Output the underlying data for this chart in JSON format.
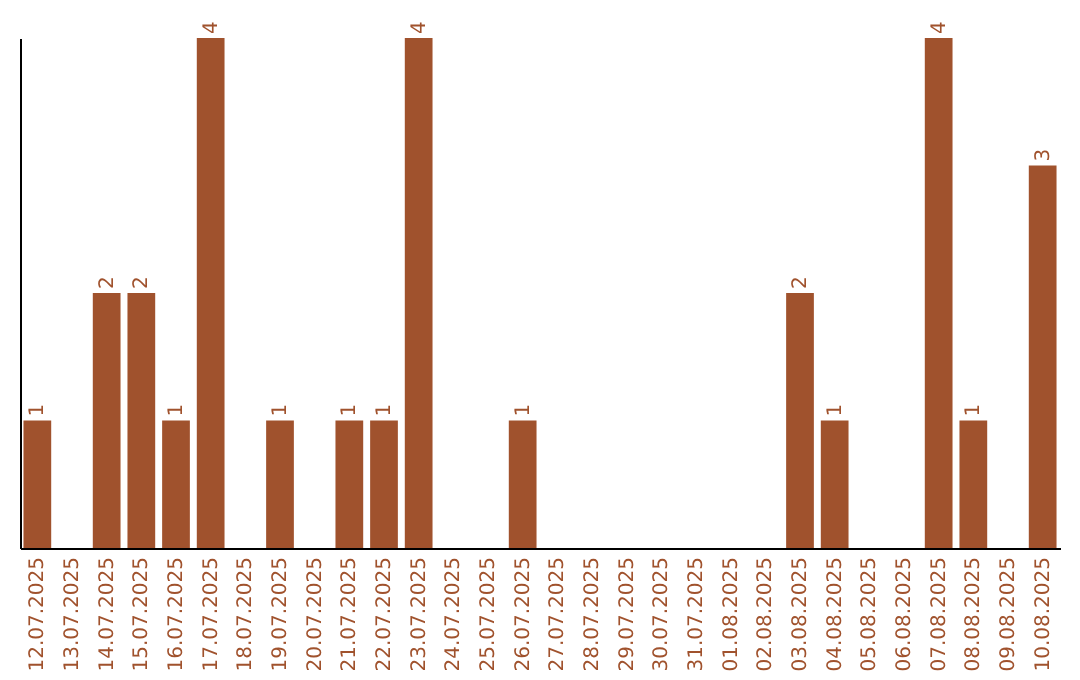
{
  "chart_data": {
    "type": "bar",
    "categories": [
      "12.07.2025",
      "13.07.2025",
      "14.07.2025",
      "15.07.2025",
      "16.07.2025",
      "17.07.2025",
      "18.07.2025",
      "19.07.2025",
      "20.07.2025",
      "21.07.2025",
      "22.07.2025",
      "23.07.2025",
      "24.07.2025",
      "25.07.2025",
      "26.07.2025",
      "27.07.2025",
      "28.07.2025",
      "29.07.2025",
      "30.07.2025",
      "31.07.2025",
      "01.08.2025",
      "02.08.2025",
      "03.08.2025",
      "04.08.2025",
      "05.08.2025",
      "06.08.2025",
      "07.08.2025",
      "08.08.2025",
      "09.08.2025",
      "10.08.2025"
    ],
    "values": [
      1,
      0,
      2,
      2,
      1,
      4,
      0,
      1,
      0,
      1,
      1,
      4,
      0,
      0,
      1,
      0,
      0,
      0,
      0,
      0,
      0,
      0,
      2,
      1,
      0,
      0,
      4,
      1,
      0,
      3
    ],
    "value_labels": [
      "1",
      null,
      "2",
      "2",
      "1",
      "4",
      null,
      "1",
      null,
      "1",
      "1",
      "4",
      null,
      null,
      "1",
      null,
      null,
      null,
      null,
      null,
      null,
      null,
      "2",
      "1",
      null,
      null,
      "4",
      "1",
      null,
      "3"
    ],
    "color": "#a0522d",
    "ylim": [
      0,
      4
    ],
    "tick_labels": "x"
  }
}
